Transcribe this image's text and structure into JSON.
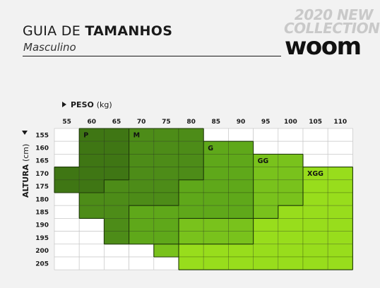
{
  "header": {
    "title_regular": "GUIA DE ",
    "title_bold": "TAMANHOS",
    "subtitle": "Masculino",
    "badge_line1": "2020 NEW",
    "badge_line2": "COLLECTION",
    "brand": "woom"
  },
  "chart_data": {
    "type": "heatmap",
    "title": "GUIA DE TAMANHOS",
    "subtitle": "Masculino",
    "x_axis": {
      "label_bold": "PESO",
      "label_unit": "(kg)",
      "ticks": [
        55,
        60,
        65,
        70,
        75,
        80,
        85,
        90,
        95,
        100,
        105,
        110
      ]
    },
    "y_axis": {
      "label_bold": "ALTURA",
      "label_unit": "(cm)",
      "ticks": [
        155,
        160,
        165,
        170,
        175,
        180,
        185,
        190,
        195,
        200,
        205
      ]
    },
    "sizes": [
      {
        "name": "P",
        "color": "#3f7614"
      },
      {
        "name": "M",
        "color": "#4d8c18"
      },
      {
        "name": "G",
        "color": "#5fa81a"
      },
      {
        "name": "GG",
        "color": "#79c21c"
      },
      {
        "name": "XGG",
        "color": "#98dd1c"
      }
    ],
    "grid": {
      "rows": [
        [
          "-",
          "P",
          "P",
          "M",
          "M",
          "M",
          "-",
          "-",
          "-",
          "-",
          "-",
          "-"
        ],
        [
          "-",
          "P",
          "P",
          "M",
          "M",
          "M",
          "G",
          "G",
          "-",
          "-",
          "-",
          "-"
        ],
        [
          "-",
          "P",
          "P",
          "M",
          "M",
          "M",
          "G",
          "G",
          "GG",
          "GG",
          "-",
          "-"
        ],
        [
          "P",
          "P",
          "P",
          "M",
          "M",
          "M",
          "G",
          "G",
          "GG",
          "GG",
          "XGG",
          "XGG"
        ],
        [
          "P",
          "P",
          "M",
          "M",
          "M",
          "G",
          "G",
          "G",
          "GG",
          "GG",
          "XGG",
          "XGG"
        ],
        [
          "-",
          "M",
          "M",
          "M",
          "M",
          "G",
          "G",
          "G",
          "GG",
          "GG",
          "XGG",
          "XGG"
        ],
        [
          "-",
          "M",
          "M",
          "G",
          "G",
          "G",
          "G",
          "G",
          "GG",
          "XGG",
          "XGG",
          "XGG"
        ],
        [
          "-",
          "-",
          "M",
          "G",
          "G",
          "GG",
          "GG",
          "GG",
          "XGG",
          "XGG",
          "XGG",
          "XGG"
        ],
        [
          "-",
          "-",
          "M",
          "G",
          "G",
          "GG",
          "GG",
          "GG",
          "XGG",
          "XGG",
          "XGG",
          "XGG"
        ],
        [
          "-",
          "-",
          "-",
          "-",
          "GG",
          "XGG",
          "XGG",
          "XGG",
          "XGG",
          "XGG",
          "XGG",
          "XGG"
        ],
        [
          "-",
          "-",
          "-",
          "-",
          "-",
          "XGG",
          "XGG",
          "XGG",
          "XGG",
          "XGG",
          "XGG",
          "XGG"
        ]
      ]
    },
    "zone_labels": [
      {
        "size": "P",
        "at_kg": 60,
        "at_cm": 155
      },
      {
        "size": "M",
        "at_kg": 70,
        "at_cm": 155
      },
      {
        "size": "G",
        "at_kg": 85,
        "at_cm": 160
      },
      {
        "size": "GG",
        "at_kg": 95,
        "at_cm": 165
      },
      {
        "size": "XGG",
        "at_kg": 105,
        "at_cm": 170
      }
    ]
  }
}
